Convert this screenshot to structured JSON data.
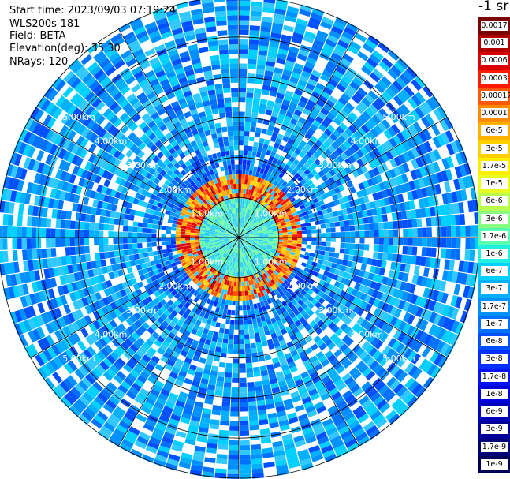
{
  "info": {
    "start_time": "Start time: 2023/09/03 07:19:24",
    "instrument": "WLS200s-181",
    "field": "Field: BETA",
    "elevation": "Elevation(deg): 35.30",
    "nrays": "NRays: 120"
  },
  "colorbar": {
    "title": "-1 sr",
    "labels": [
      "0.0017",
      "0.001",
      "0.0006",
      "0.0003",
      "0.00017",
      "0.0001",
      "6e-5",
      "3e-5",
      "1.7e-5",
      "1e-5",
      "6e-6",
      "3e-6",
      "1.7e-6",
      "1e-6",
      "6e-7",
      "3e-7",
      "1.7e-7",
      "1e-7",
      "6e-8",
      "3e-8",
      "1.7e-8",
      "1e-8",
      "6e-9",
      "3e-9",
      "1.7e-9",
      "1e-9"
    ],
    "colors": [
      "#7a0000",
      "#b00000",
      "#d80000",
      "#ff1a00",
      "#ff5a00",
      "#ff8c00",
      "#ffb000",
      "#ffd000",
      "#ffee00",
      "#e8ff20",
      "#b8ff50",
      "#88ff80",
      "#58ffb0",
      "#20f0e0",
      "#00d0ff",
      "#00b0ff",
      "#0090ff",
      "#0070ff",
      "#0050ff",
      "#0030ff",
      "#0010f0",
      "#0000d8",
      "#0000b8",
      "#000098",
      "#000078",
      "#000058"
    ]
  },
  "chart_data": {
    "type": "heatmap",
    "subtype": "polar PPI scan",
    "field": "BETA",
    "nrays": 120,
    "range_rings_km": [
      1,
      2,
      3,
      4,
      5
    ],
    "ring_labels": [
      "1.00km",
      "2.00km",
      "3.00km",
      "4.00km",
      "5.00km"
    ],
    "max_range_km": 6.0,
    "scale": "log",
    "value_range": [
      1e-09,
      0.0017
    ],
    "spokes_deg": [
      0,
      30,
      60,
      90,
      120,
      150,
      180,
      210,
      240,
      270,
      300,
      330
    ],
    "signal_profile": {
      "inner_region_km": [
        0,
        1.0
      ],
      "inner_value": "3e-7",
      "ring_peak_km": [
        1.0,
        1.4
      ],
      "ring_peak_value": "1.7e-5 to 0.001",
      "outer_value": "3e-8 to 1.7e-7",
      "edge_value": "1e-8 to 6e-8"
    }
  }
}
